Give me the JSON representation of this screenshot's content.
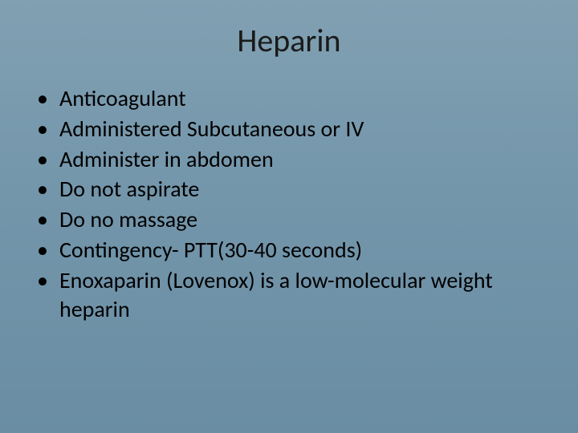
{
  "slide": {
    "title": "Heparin",
    "bullets": [
      "Anticoagulant",
      "Administered Subcutaneous or IV",
      "Administer in abdomen",
      "Do not aspirate",
      "Do no massage",
      "Contingency- PTT(30-40 seconds)",
      "Enoxaparin (Lovenox) is a low-molecular weight heparin"
    ],
    "background_gradient": [
      "#81a0b2",
      "#7295aa",
      "#6a8da3"
    ],
    "title_fontsize": 40,
    "bullet_fontsize": 28,
    "text_color": "#000000",
    "font_family": "Calibri"
  }
}
